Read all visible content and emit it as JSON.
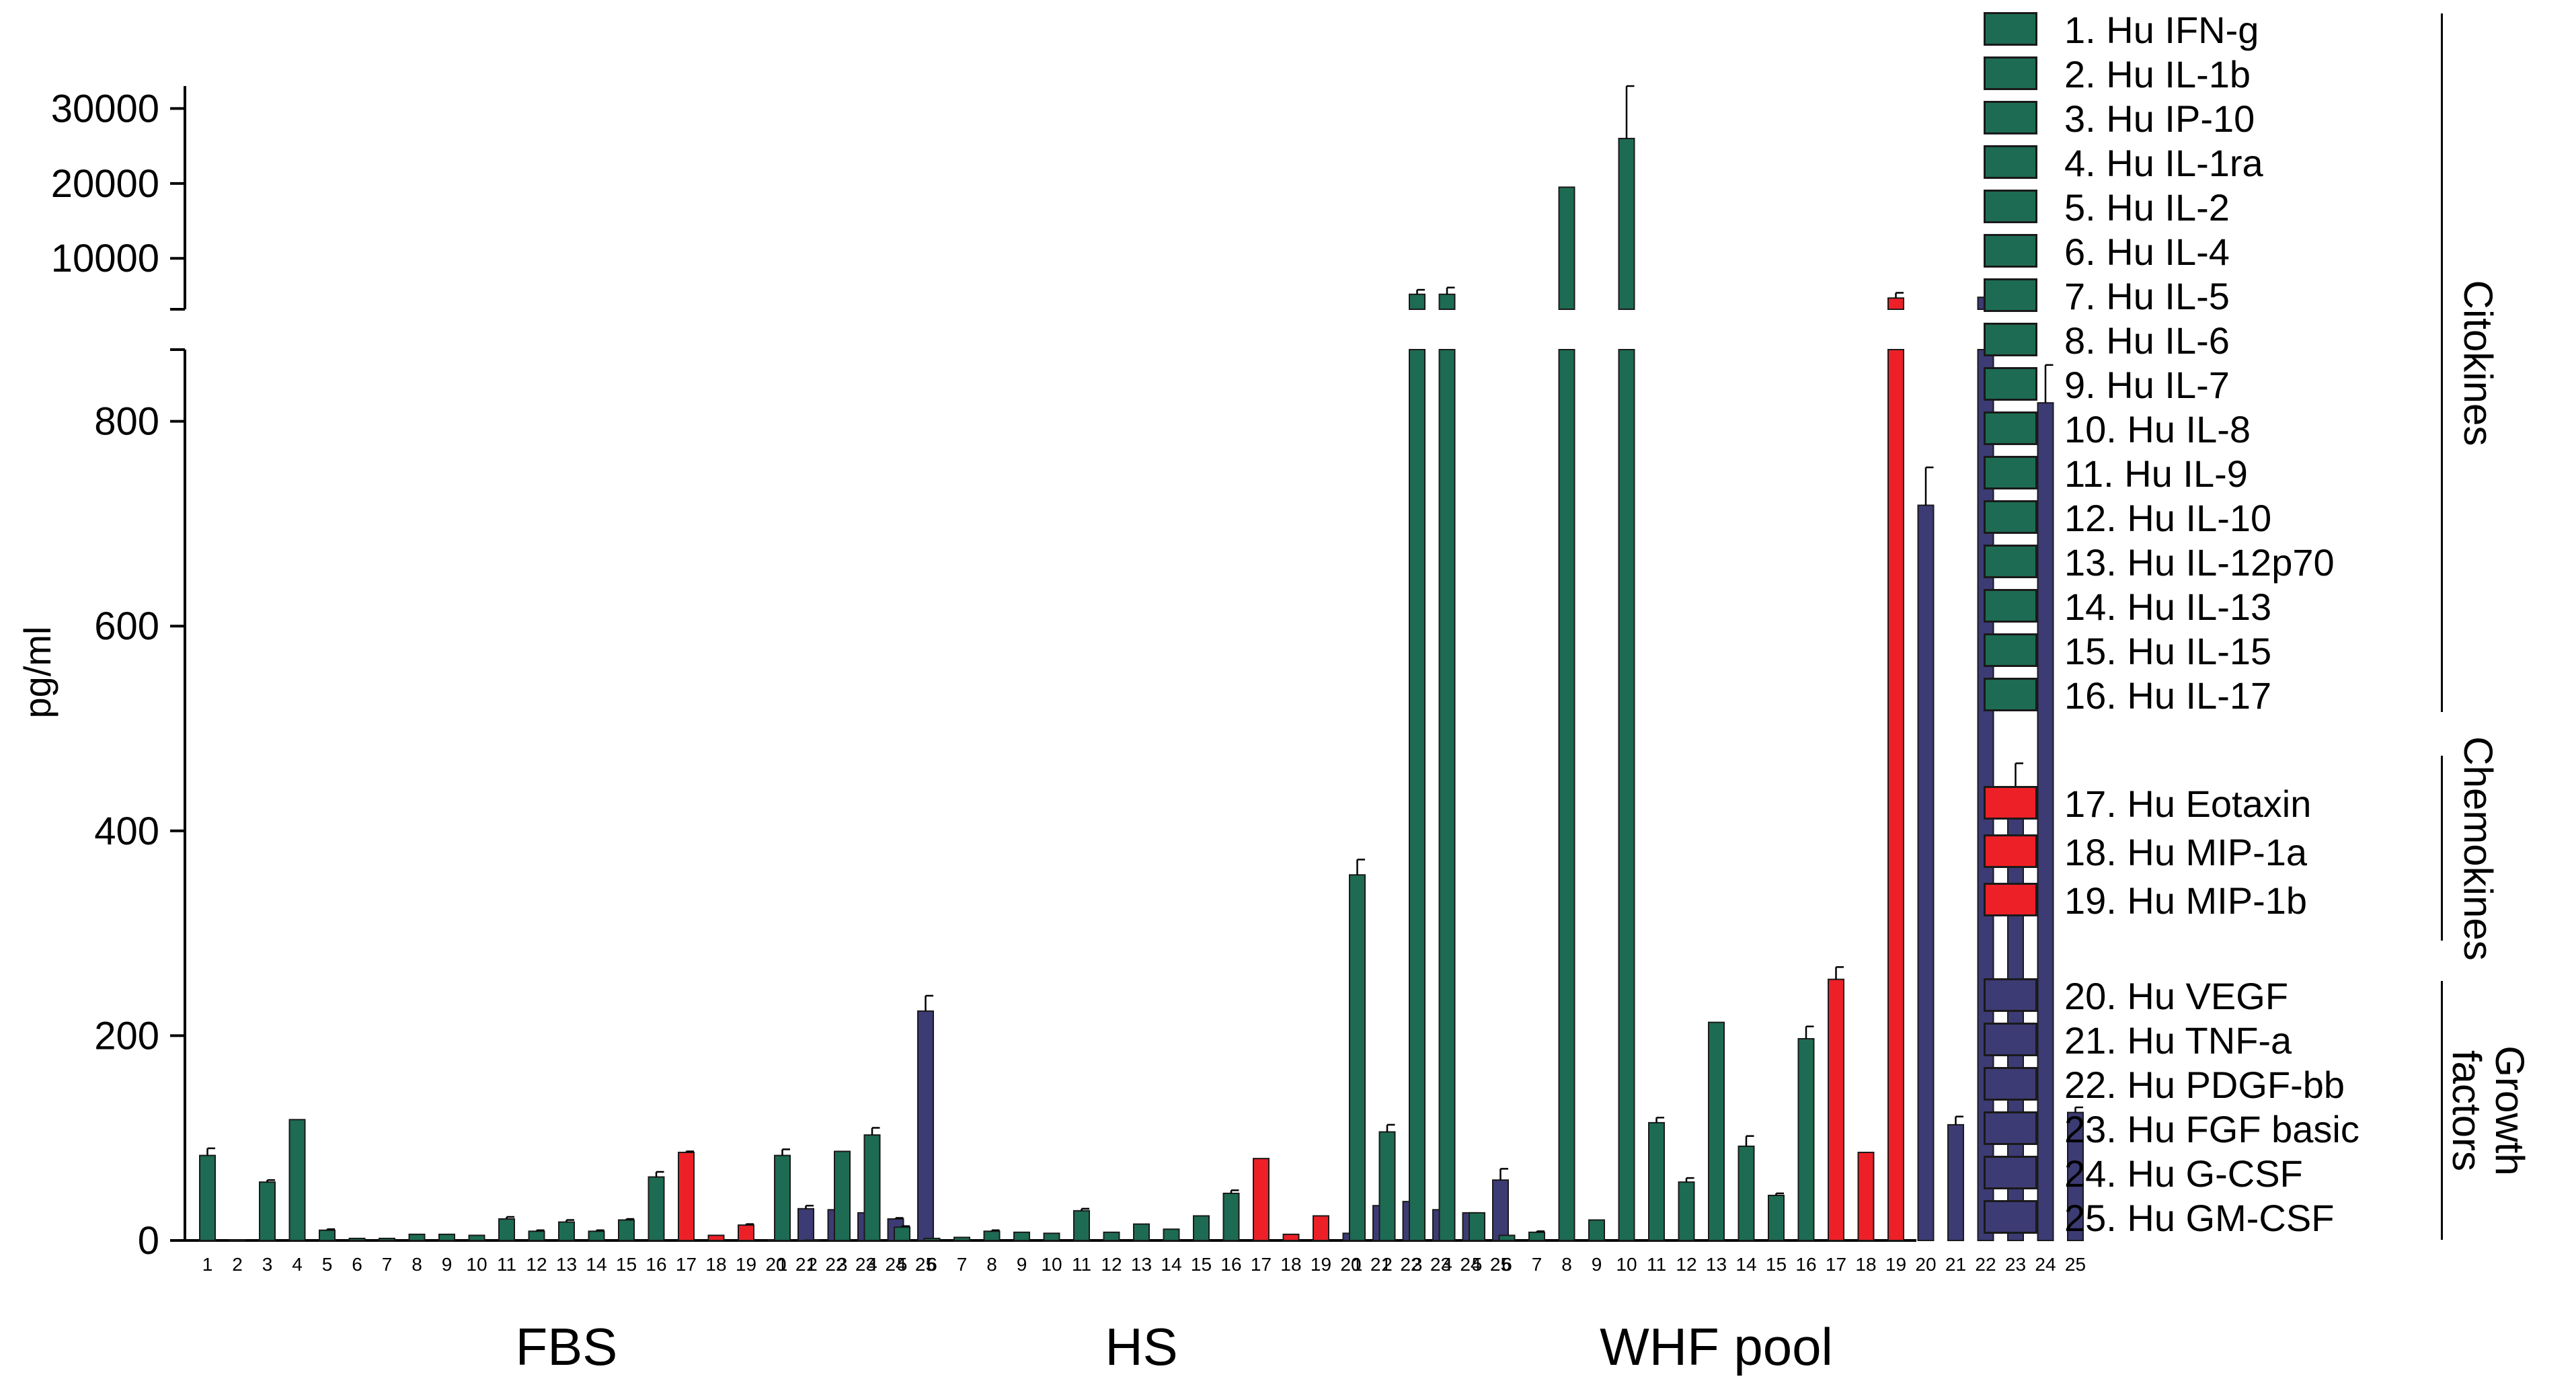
{
  "chart_data": {
    "type": "bar",
    "ylabel": "pg/ml",
    "xlabel": "",
    "title": "",
    "y_break": {
      "lower_range": [
        0,
        870
      ],
      "upper_range": [
        0,
        33000
      ],
      "lower_ticks": [
        0,
        200,
        400,
        600,
        800
      ],
      "upper_ticks": [
        10000,
        20000,
        30000
      ]
    },
    "groups": [
      "FBS",
      "HS",
      "WHF pool"
    ],
    "categories": [
      "1",
      "2",
      "3",
      "4",
      "5",
      "6",
      "7",
      "8",
      "9",
      "10",
      "11",
      "12",
      "13",
      "14",
      "15",
      "16",
      "17",
      "18",
      "19",
      "20",
      "21",
      "22",
      "23",
      "24",
      "25"
    ],
    "series": [
      {
        "name": "FBS",
        "values": [
          83,
          0,
          57,
          118,
          10,
          2,
          2,
          6,
          6,
          5,
          21,
          9,
          18,
          9,
          20,
          62,
          86,
          5,
          15,
          0,
          31,
          30,
          27,
          21,
          224
        ],
        "errors": [
          7,
          0,
          2,
          0,
          1,
          0,
          0,
          0,
          0,
          0,
          2,
          1,
          2,
          1,
          1,
          5,
          1,
          0,
          1,
          0,
          3,
          4,
          2,
          1,
          15
        ]
      },
      {
        "name": "HS",
        "values": [
          83,
          0,
          87,
          103,
          13,
          2,
          3,
          9,
          8,
          7,
          29,
          8,
          16,
          11,
          24,
          46,
          80,
          6,
          24,
          7,
          34,
          38,
          30,
          27,
          59
        ],
        "errors": [
          6,
          0,
          0,
          7,
          1,
          0,
          0,
          1,
          0,
          0,
          2,
          0,
          0,
          0,
          0,
          3,
          0,
          0,
          0,
          0,
          1,
          1,
          2,
          0,
          11
        ]
      },
      {
        "name": "WHF pool",
        "values": [
          357,
          106,
          5200,
          5200,
          27,
          5,
          8,
          19500,
          20,
          26000,
          115,
          57,
          213,
          92,
          44,
          197,
          255,
          86,
          4700,
          718,
          113,
          4800,
          436,
          818,
          125
        ],
        "errors": [
          15,
          7,
          600,
          900,
          0,
          0,
          1,
          0,
          0,
          7000,
          5,
          4,
          0,
          10,
          2,
          12,
          12,
          0,
          700,
          37,
          8,
          400,
          30,
          37,
          5
        ]
      }
    ],
    "category_colors": [
      "#1d6b53",
      "#1d6b53",
      "#1d6b53",
      "#1d6b53",
      "#1d6b53",
      "#1d6b53",
      "#1d6b53",
      "#1d6b53",
      "#1d6b53",
      "#1d6b53",
      "#1d6b53",
      "#1d6b53",
      "#1d6b53",
      "#1d6b53",
      "#1d6b53",
      "#1d6b53",
      "#ee2027",
      "#ee2027",
      "#ee2027",
      "#3d3b74",
      "#3d3b74",
      "#3d3b74",
      "#3d3b74",
      "#3d3b74",
      "#3d3b74"
    ],
    "legend": [
      {
        "label": "1. Hu IFN-g",
        "color": "#1d6b53"
      },
      {
        "label": "2. Hu IL-1b",
        "color": "#1d6b53"
      },
      {
        "label": "3. Hu IP-10",
        "color": "#1d6b53"
      },
      {
        "label": "4. Hu IL-1ra",
        "color": "#1d6b53"
      },
      {
        "label": "5. Hu IL-2",
        "color": "#1d6b53"
      },
      {
        "label": "6. Hu IL-4",
        "color": "#1d6b53"
      },
      {
        "label": "7. Hu IL-5",
        "color": "#1d6b53"
      },
      {
        "label": "8. Hu IL-6",
        "color": "#1d6b53"
      },
      {
        "label": "9. Hu IL-7",
        "color": "#1d6b53"
      },
      {
        "label": "10. Hu IL-8",
        "color": "#1d6b53"
      },
      {
        "label": "11. Hu IL-9",
        "color": "#1d6b53"
      },
      {
        "label": "12. Hu IL-10",
        "color": "#1d6b53"
      },
      {
        "label": "13. Hu IL-12p70",
        "color": "#1d6b53"
      },
      {
        "label": "14. Hu IL-13",
        "color": "#1d6b53"
      },
      {
        "label": "15. Hu IL-15",
        "color": "#1d6b53"
      },
      {
        "label": "16. Hu IL-17",
        "color": "#1d6b53"
      },
      {
        "label": "17. Hu Eotaxin",
        "color": "#ee2027"
      },
      {
        "label": "18. Hu MIP-1a",
        "color": "#ee2027"
      },
      {
        "label": "19. Hu MIP-1b",
        "color": "#ee2027"
      },
      {
        "label": "20. Hu VEGF",
        "color": "#3d3b74"
      },
      {
        "label": "21. Hu TNF-a",
        "color": "#3d3b74"
      },
      {
        "label": "22. Hu PDGF-bb",
        "color": "#3d3b74"
      },
      {
        "label": "23. Hu FGF basic",
        "color": "#3d3b74"
      },
      {
        "label": "24. Hu G-CSF",
        "color": "#3d3b74"
      },
      {
        "label": "25. Hu GM-CSF",
        "color": "#3d3b74"
      }
    ],
    "legend_groups": [
      {
        "label": "Citokines"
      },
      {
        "label": "Chemokines"
      },
      {
        "label": "Growth factors"
      }
    ],
    "grid": false,
    "legend_position": "right"
  }
}
